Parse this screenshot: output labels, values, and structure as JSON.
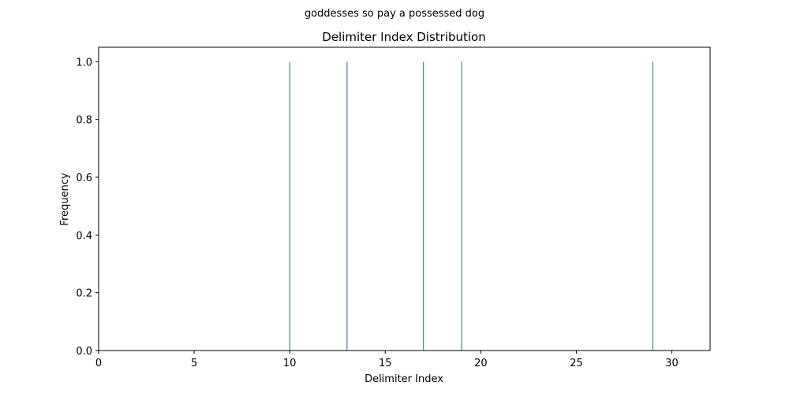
{
  "chart_data": {
    "type": "bar",
    "suptitle": "goddesses so pay a possessed dog",
    "title": "Delimiter Index Distribution",
    "xlabel": "Delimiter Index",
    "ylabel": "Frequency",
    "xlim": [
      0,
      32
    ],
    "ylim": [
      0,
      1.05
    ],
    "x_ticks": [
      0,
      5,
      10,
      15,
      20,
      25,
      30
    ],
    "x_tick_labels": [
      "0",
      "5",
      "10",
      "15",
      "20",
      "25",
      "30"
    ],
    "y_ticks": [
      0.0,
      0.2,
      0.4,
      0.6,
      0.8,
      1.0
    ],
    "y_tick_labels": [
      "0.0",
      "0.2",
      "0.4",
      "0.6",
      "0.8",
      "1.0"
    ],
    "series": [
      {
        "x": [
          10,
          13,
          17,
          19,
          29
        ],
        "values": [
          1,
          1,
          1,
          1,
          1
        ]
      }
    ],
    "bar_color": "#1f6f8b",
    "grid": false,
    "legend": false
  }
}
